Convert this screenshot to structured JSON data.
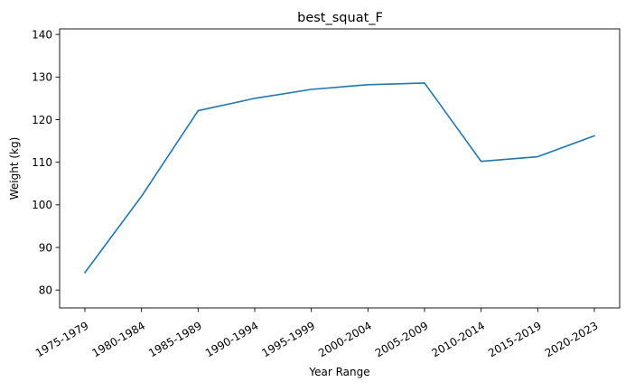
{
  "chart_data": {
    "type": "line",
    "title": "best_squat_F",
    "xlabel": "Year Range",
    "ylabel": "Weight (kg)",
    "categories": [
      "1975-1979",
      "1980-1984",
      "1985-1989",
      "1990-1994",
      "1995-1999",
      "2000-2004",
      "2005-2009",
      "2010-2014",
      "2015-2019",
      "2020-2023"
    ],
    "series": [
      {
        "values": [
          84.1,
          102.0,
          122.1,
          125.0,
          127.1,
          128.2,
          128.6,
          110.2,
          111.3,
          116.2
        ],
        "color": "#1f77b4"
      }
    ],
    "yticks": [
      80,
      90,
      100,
      110,
      120,
      130,
      140
    ],
    "ylim": [
      75.8,
      141.3
    ],
    "xtick_rotation": 30,
    "grid": false,
    "legend": "none"
  }
}
